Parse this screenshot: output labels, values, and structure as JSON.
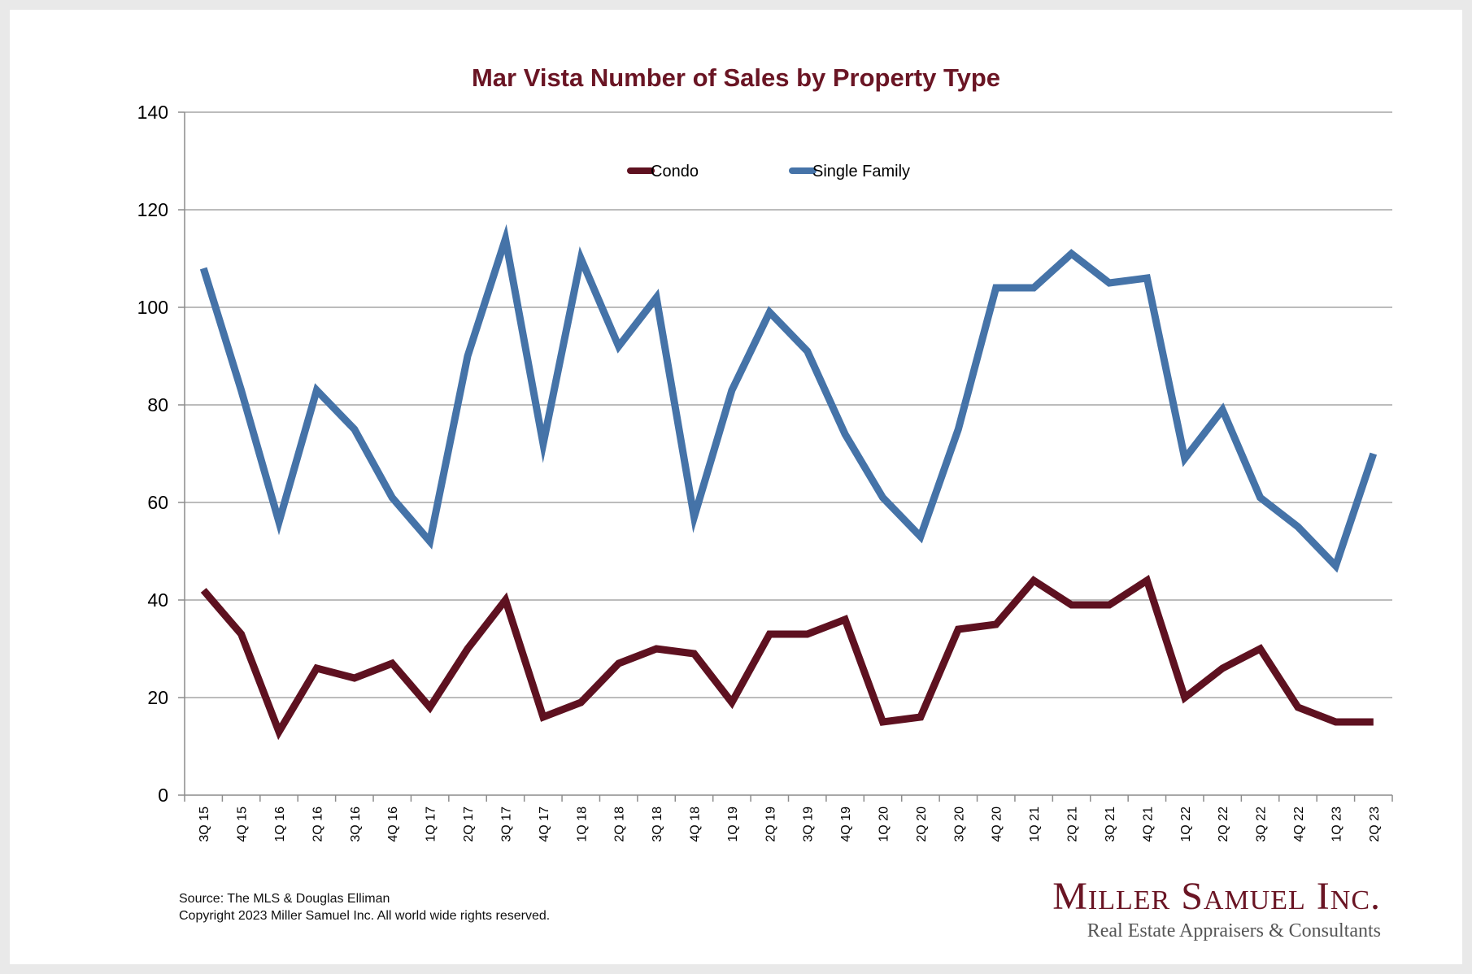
{
  "chart_data": {
    "type": "line",
    "title": "Mar Vista Number of Sales by Property Type",
    "xlabel": "",
    "ylabel": "",
    "ylim": [
      0,
      140
    ],
    "yticks": [
      0,
      20,
      40,
      60,
      80,
      100,
      120,
      140
    ],
    "grid": true,
    "legend_position": "top-center",
    "categories": [
      "3Q 15",
      "4Q 15",
      "1Q 16",
      "2Q 16",
      "3Q 16",
      "4Q 16",
      "1Q 17",
      "2Q 17",
      "3Q 17",
      "4Q 17",
      "1Q 18",
      "2Q 18",
      "3Q 18",
      "4Q 18",
      "1Q 19",
      "2Q 19",
      "3Q 19",
      "4Q 19",
      "1Q 20",
      "2Q 20",
      "3Q 20",
      "4Q 20",
      "1Q 21",
      "2Q 21",
      "3Q 21",
      "4Q 21",
      "1Q 22",
      "2Q 22",
      "3Q 22",
      "4Q 22",
      "1Q 23",
      "2Q 23"
    ],
    "series": [
      {
        "name": "Condo",
        "color": "#5e1120",
        "values": [
          42,
          33,
          13,
          26,
          24,
          27,
          18,
          30,
          40,
          16,
          19,
          27,
          30,
          29,
          19,
          33,
          33,
          36,
          15,
          16,
          34,
          35,
          44,
          39,
          39,
          44,
          20,
          26,
          30,
          18,
          15,
          15
        ]
      },
      {
        "name": "Single Family",
        "color": "#4573a8",
        "values": [
          108,
          83,
          56,
          83,
          75,
          61,
          52,
          90,
          114,
          72,
          110,
          92,
          102,
          57,
          83,
          99,
          91,
          74,
          61,
          53,
          75,
          104,
          104,
          111,
          105,
          106,
          69,
          79,
          61,
          55,
          47,
          70
        ]
      }
    ]
  },
  "footer": {
    "source_line": "Source: The MLS & Douglas Elliman",
    "copyright_line": "Copyright 2023 Miller Samuel Inc.  All world wide rights reserved."
  },
  "logo": {
    "name": "Miller Samuel Inc.",
    "tagline": "Real Estate Appraisers & Consultants"
  }
}
